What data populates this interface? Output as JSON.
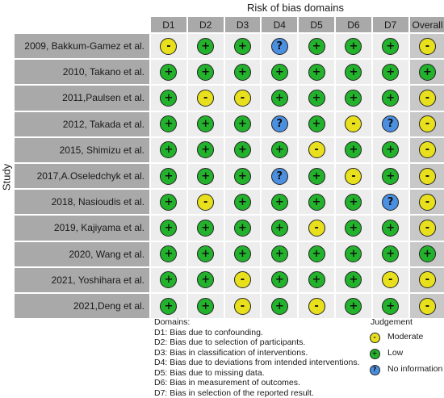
{
  "title": "Risk of bias domains",
  "y_axis_label": "Study",
  "domains": [
    "D1",
    "D2",
    "D3",
    "D4",
    "D5",
    "D6",
    "D7"
  ],
  "overall_label": "Overall",
  "studies": [
    {
      "name": "2009, Bakkum-Gamez et al.",
      "judgements": [
        "moderate",
        "low",
        "low",
        "no_information",
        "low",
        "low",
        "low"
      ],
      "overall": "moderate"
    },
    {
      "name": "2010, Takano et al.",
      "judgements": [
        "low",
        "low",
        "low",
        "low",
        "low",
        "low",
        "low"
      ],
      "overall": "low"
    },
    {
      "name": "2011,Paulsen et al.",
      "judgements": [
        "low",
        "moderate",
        "moderate",
        "low",
        "low",
        "low",
        "low"
      ],
      "overall": "moderate"
    },
    {
      "name": "2012, Takada et al.",
      "judgements": [
        "low",
        "low",
        "low",
        "no_information",
        "low",
        "moderate",
        "no_information"
      ],
      "overall": "moderate"
    },
    {
      "name": "2015, Shimizu et al.",
      "judgements": [
        "low",
        "low",
        "low",
        "low",
        "moderate",
        "low",
        "low"
      ],
      "overall": "moderate"
    },
    {
      "name": "2017,A.Oseledchyk et al.",
      "judgements": [
        "low",
        "low",
        "low",
        "no_information",
        "low",
        "moderate",
        "low"
      ],
      "overall": "moderate"
    },
    {
      "name": "2018, Nasioudis et al.",
      "judgements": [
        "low",
        "moderate",
        "low",
        "low",
        "low",
        "low",
        "no_information"
      ],
      "overall": "moderate"
    },
    {
      "name": "2019, Kajiyama et al.",
      "judgements": [
        "low",
        "low",
        "low",
        "low",
        "moderate",
        "low",
        "low"
      ],
      "overall": "moderate"
    },
    {
      "name": "2020, Wang et al.",
      "judgements": [
        "low",
        "low",
        "low",
        "low",
        "low",
        "low",
        "low"
      ],
      "overall": "low"
    },
    {
      "name": "2021, Yoshihara et al.",
      "judgements": [
        "low",
        "low",
        "moderate",
        "low",
        "low",
        "low",
        "moderate"
      ],
      "overall": "moderate"
    },
    {
      "name": "2021,Deng et al.",
      "judgements": [
        "low",
        "low",
        "moderate",
        "low",
        "moderate",
        "low",
        "low"
      ],
      "overall": "moderate"
    }
  ],
  "symbols": {
    "low": "+",
    "moderate": "-",
    "no_information": "?"
  },
  "colors": {
    "low": "#22b22c",
    "moderate": "#e8e01c",
    "no_information": "#4a8fe0",
    "header_bg": "#a9a9a9",
    "cell_bg": "#ededed",
    "overall_bg": "#c8c8c8"
  },
  "domains_legend": {
    "heading": "Domains:",
    "items": [
      "D1: Bias due to confounding.",
      "D2: Bias due to selection of participants.",
      "D3: Bias in classification of interventions.",
      "D4: Bias due to deviations from intended interventions.",
      "D5: Bias due to missing data.",
      "D6: Bias in measurement of outcomes.",
      "D7: Bias in selection of the reported result."
    ]
  },
  "judgement_legend": {
    "heading": "Judgement",
    "items": [
      {
        "level": "moderate",
        "label": "Moderate"
      },
      {
        "level": "low",
        "label": "Low"
      },
      {
        "level": "no_information",
        "label": "No information"
      }
    ]
  }
}
